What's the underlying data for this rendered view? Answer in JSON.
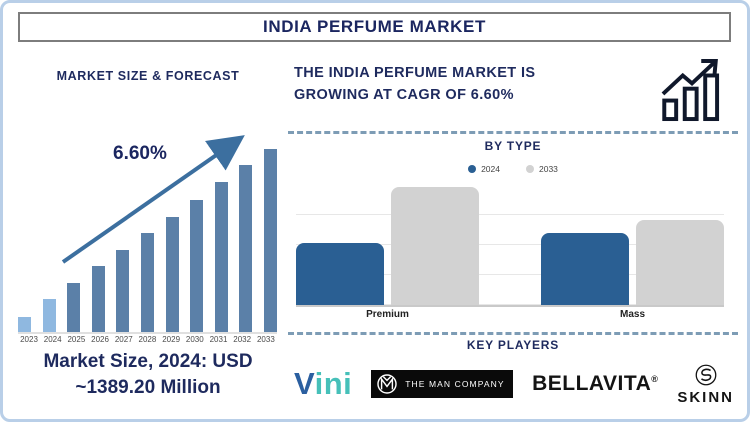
{
  "title": "INDIA PERFUME MARKET",
  "colors": {
    "navy_text": "#1e2a5e",
    "frame_blue": "#b9cfe8",
    "bar_dark": "#5b80a8",
    "bar_light": "#8fb8e0",
    "arrow": "#3c6f9f",
    "type_2024_blue": "#2a5f93",
    "type_2033_gray": "#d2d2d2",
    "dashed_line": "#7d9cb5"
  },
  "left_panel": {
    "heading": "MARKET SIZE & FORECAST",
    "cagr_label": "6.60%",
    "caption_line1": "Market Size, 2024: USD",
    "caption_line2": "~1389.20 Million"
  },
  "right_panel": {
    "headline_line1": "THE INDIA PERFUME MARKET IS",
    "headline_line2": "GROWING AT CAGR OF 6.60%",
    "by_type_heading": "BY TYPE",
    "premium_label": "Premium",
    "mass_label": "Mass",
    "key_players_heading": "KEY PLAYERS",
    "players": {
      "vini": "Vini",
      "man_company": "THE MAN COMPANY",
      "bellavita": "BELLAVITA",
      "bellavita_reg": "®",
      "skinn": "SKINN"
    }
  },
  "chart_data": [
    {
      "name": "market-size-forecast",
      "type": "bar",
      "title": "MARKET SIZE & FORECAST",
      "categories": [
        "2023",
        "2024",
        "2025",
        "2026",
        "2027",
        "2028",
        "2029",
        "2030",
        "2031",
        "2032",
        "2033"
      ],
      "values_pct": [
        8,
        18,
        27,
        36,
        45,
        54,
        63,
        72,
        82,
        91,
        100
      ],
      "value_axis": "unlabeled (relative bar heights, % of 2033 bar)",
      "light_years": [
        "2023",
        "2024"
      ],
      "annotation": "6.60%",
      "note": "Market Size, 2024: USD ~1389.20 Million",
      "grid": false,
      "legend": "none"
    },
    {
      "name": "by-type",
      "type": "bar",
      "title": "BY TYPE",
      "categories": [
        "Premium",
        "Mass"
      ],
      "series": [
        {
          "name": "2024",
          "color": "#2a5f93",
          "values_pct": [
            52,
            60
          ]
        },
        {
          "name": "2033",
          "color": "#d2d2d2",
          "values_pct": [
            98,
            71
          ]
        }
      ],
      "value_axis": "unlabeled (relative bar heights, % of plot height)",
      "grid": true,
      "legend_position": "top-center"
    }
  ]
}
